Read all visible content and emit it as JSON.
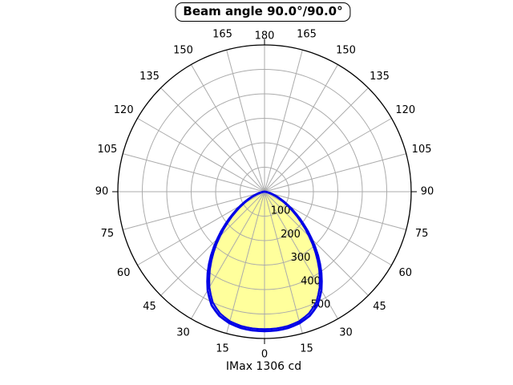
{
  "title": {
    "text": "Beam angle 90.0°/90.0°"
  },
  "footer": {
    "text": "IMax 1306 cd"
  },
  "chart_data": {
    "type": "polar",
    "subtype": "luminous-intensity-distribution",
    "title": "Beam angle 90.0°/90.0°",
    "footer_label": "IMax 1306 cd",
    "imax_cd": 1306,
    "beam_angle_c0": "90.0°",
    "beam_angle_c90": "90.0°",
    "angle_tick_labels": [
      0,
      15,
      30,
      45,
      60,
      75,
      90,
      105,
      120,
      135,
      150,
      165,
      180
    ],
    "radial_tick_labels": [
      100,
      200,
      300,
      400,
      500
    ],
    "radial_max": 600,
    "grid": true,
    "angle_step_deg": 15,
    "angles_deg": [
      0,
      5,
      10,
      15,
      20,
      25,
      30,
      35,
      40,
      45,
      50,
      55,
      60,
      65,
      70,
      75,
      80,
      85,
      90
    ],
    "series": [
      {
        "name": "plane-c0-c180",
        "values": [
          570,
          569,
          565,
          556,
          540,
          512,
          465,
          405,
          340,
          272,
          210,
          156,
          110,
          73,
          44,
          24,
          11,
          4,
          0
        ]
      },
      {
        "name": "plane-c90-c270",
        "values": [
          562,
          561,
          557,
          548,
          530,
          500,
          451,
          390,
          324,
          257,
          196,
          143,
          99,
          65,
          38,
          19,
          8,
          3,
          0
        ]
      }
    ],
    "symmetric": true,
    "colors": {
      "curve": "#0000e6",
      "fill": "#ffff9c",
      "grid": "#ababab",
      "axis": "#000000",
      "text": "#000000",
      "background": "#ffffff"
    }
  }
}
